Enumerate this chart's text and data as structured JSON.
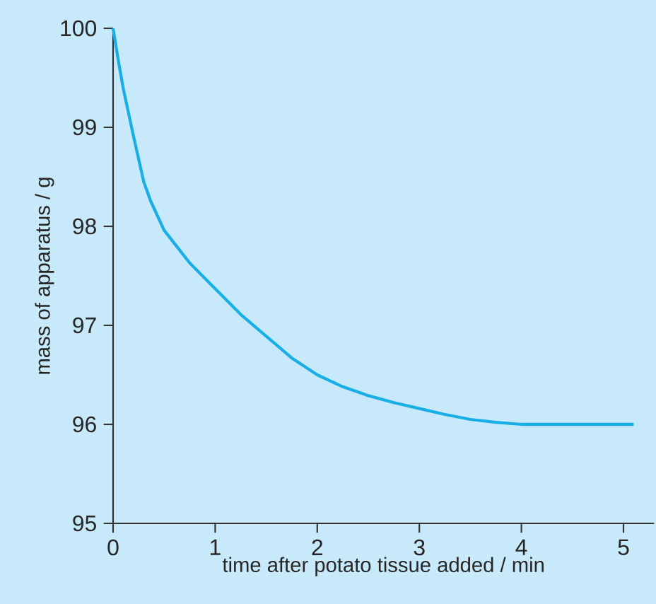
{
  "chart_data": {
    "type": "line",
    "xlabel": "time after potato tissue added / min",
    "ylabel": "mass of apparatus / g",
    "series": [
      {
        "color": "#1aaee6",
        "x": [
          0,
          0.05,
          0.1,
          0.2,
          0.3,
          0.37,
          0.5,
          0.75,
          1,
          1.25,
          1.5,
          1.75,
          2,
          2.25,
          2.5,
          2.75,
          3,
          3.25,
          3.5,
          3.75,
          4,
          4.5,
          5.1
        ],
        "values": [
          100,
          99.68,
          99.39,
          98.91,
          98.45,
          98.25,
          97.96,
          97.63,
          97.37,
          97.11,
          96.89,
          96.67,
          96.5,
          96.38,
          96.29,
          96.22,
          96.16,
          96.1,
          96.05,
          96.02,
          96.0,
          96.0,
          96.0
        ]
      }
    ],
    "xlim": [
      0,
      5.3
    ],
    "ylim": [
      95,
      100
    ],
    "xticks": [
      0,
      1,
      2,
      3,
      4,
      5
    ],
    "yticks": [
      95,
      96,
      97,
      98,
      99,
      100
    ],
    "grid": false,
    "marker": "none",
    "line_style": "solid"
  }
}
